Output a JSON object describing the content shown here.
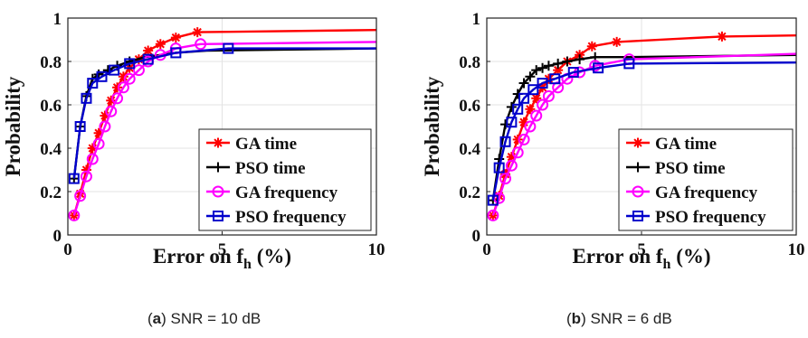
{
  "captions": [
    {
      "open": "(",
      "letter": "a",
      "close": ")",
      "text": " SNR = 10 dB"
    },
    {
      "open": "(",
      "letter": "b",
      "close": ")",
      "text": " SNR = 6 dB"
    }
  ],
  "colors": {
    "ga_time": "#ff0000",
    "pso_time": "#000000",
    "ga_frequency": "#ff00ff",
    "pso_frequency": "#0000cc"
  },
  "chart_data": [
    {
      "type": "line",
      "title": "",
      "xlabel": "Error on f",
      "xlabel_sub": "h",
      "xlabel_suffix": " (%)",
      "ylabel": "Probability",
      "xlim": [
        0,
        10
      ],
      "ylim": [
        0,
        1
      ],
      "xticks": [
        "0",
        "5",
        "10"
      ],
      "yticks": [
        "0",
        "0.2",
        "0.4",
        "0.6",
        "0.8",
        "1"
      ],
      "grid": true,
      "legend_position": "bottom-right",
      "series": [
        {
          "name": "GA time",
          "marker": "star",
          "color": "#ff0000",
          "x": [
            0.2,
            0.4,
            0.6,
            0.8,
            1.0,
            1.2,
            1.4,
            1.6,
            1.8,
            2.0,
            2.3,
            2.6,
            3.0,
            3.5,
            4.2,
            10
          ],
          "y": [
            0.09,
            0.19,
            0.3,
            0.4,
            0.47,
            0.55,
            0.62,
            0.68,
            0.73,
            0.77,
            0.81,
            0.85,
            0.88,
            0.91,
            0.935,
            0.945
          ],
          "markers_at": [
            0,
            1,
            2,
            3,
            4,
            5,
            6,
            7,
            8,
            9,
            10,
            11,
            12,
            13,
            14
          ]
        },
        {
          "name": "PSO time",
          "marker": "plus",
          "color": "#000000",
          "x": [
            0.2,
            0.4,
            0.6,
            0.8,
            1.0,
            1.3,
            1.6,
            2.0,
            2.5,
            3.0,
            3.5,
            4.5,
            10
          ],
          "y": [
            0.26,
            0.5,
            0.64,
            0.72,
            0.74,
            0.76,
            0.78,
            0.8,
            0.82,
            0.83,
            0.84,
            0.85,
            0.86
          ],
          "markers_at": [
            0,
            1,
            2,
            3,
            4,
            5,
            6,
            7
          ]
        },
        {
          "name": "GA frequency",
          "marker": "circle",
          "color": "#ff00ff",
          "x": [
            0.2,
            0.4,
            0.6,
            0.8,
            1.0,
            1.2,
            1.4,
            1.6,
            1.8,
            2.0,
            2.3,
            2.6,
            3.0,
            3.5,
            4.3,
            10
          ],
          "y": [
            0.09,
            0.18,
            0.27,
            0.35,
            0.42,
            0.5,
            0.57,
            0.63,
            0.68,
            0.72,
            0.76,
            0.8,
            0.83,
            0.86,
            0.88,
            0.89
          ],
          "markers_at": [
            0,
            1,
            2,
            3,
            4,
            5,
            6,
            7,
            8,
            9,
            10,
            11,
            12,
            13,
            14
          ]
        },
        {
          "name": "PSO frequency",
          "marker": "square",
          "color": "#0000cc",
          "x": [
            0.2,
            0.4,
            0.6,
            0.8,
            1.1,
            1.5,
            2.0,
            2.6,
            3.5,
            5.2,
            10
          ],
          "y": [
            0.26,
            0.5,
            0.63,
            0.7,
            0.73,
            0.76,
            0.79,
            0.81,
            0.84,
            0.86,
            0.86
          ],
          "markers_at": [
            0,
            1,
            2,
            3,
            4,
            5,
            6,
            7,
            8,
            9
          ]
        }
      ]
    },
    {
      "type": "line",
      "title": "",
      "xlabel": "Error on f",
      "xlabel_sub": "h",
      "xlabel_suffix": " (%)",
      "ylabel": "Probability",
      "xlim": [
        0,
        10
      ],
      "ylim": [
        0,
        1
      ],
      "xticks": [
        "0",
        "5",
        "10"
      ],
      "yticks": [
        "0",
        "0.2",
        "0.4",
        "0.6",
        "0.8",
        "1"
      ],
      "grid": true,
      "legend_position": "bottom-right",
      "series": [
        {
          "name": "GA time",
          "marker": "star",
          "color": "#ff0000",
          "x": [
            0.2,
            0.4,
            0.6,
            0.8,
            1.0,
            1.2,
            1.4,
            1.6,
            1.8,
            2.0,
            2.3,
            2.6,
            3.0,
            3.4,
            4.2,
            7.6,
            10
          ],
          "y": [
            0.09,
            0.18,
            0.28,
            0.36,
            0.44,
            0.52,
            0.58,
            0.63,
            0.68,
            0.72,
            0.76,
            0.8,
            0.83,
            0.87,
            0.89,
            0.915,
            0.92
          ],
          "markers_at": [
            0,
            1,
            2,
            3,
            4,
            5,
            6,
            7,
            8,
            9,
            10,
            11,
            12,
            13,
            14,
            15
          ]
        },
        {
          "name": "PSO time",
          "marker": "plus",
          "color": "#000000",
          "x": [
            0.2,
            0.4,
            0.6,
            0.8,
            1.0,
            1.2,
            1.4,
            1.6,
            1.8,
            2.0,
            2.3,
            2.6,
            3.0,
            3.5,
            4.5,
            10
          ],
          "y": [
            0.16,
            0.35,
            0.51,
            0.59,
            0.65,
            0.7,
            0.73,
            0.76,
            0.77,
            0.78,
            0.79,
            0.8,
            0.81,
            0.82,
            0.82,
            0.83
          ],
          "markers_at": [
            0,
            1,
            2,
            3,
            4,
            5,
            6,
            7,
            8,
            9,
            10,
            11,
            12,
            13
          ]
        },
        {
          "name": "GA frequency",
          "marker": "circle",
          "color": "#ff00ff",
          "x": [
            0.2,
            0.4,
            0.6,
            0.8,
            1.0,
            1.2,
            1.4,
            1.6,
            1.8,
            2.0,
            2.3,
            2.6,
            3.0,
            3.5,
            4.6,
            10
          ],
          "y": [
            0.09,
            0.17,
            0.26,
            0.32,
            0.38,
            0.44,
            0.5,
            0.55,
            0.6,
            0.64,
            0.68,
            0.72,
            0.75,
            0.78,
            0.81,
            0.835
          ],
          "markers_at": [
            0,
            1,
            2,
            3,
            4,
            5,
            6,
            7,
            8,
            9,
            10,
            11,
            12,
            13,
            14
          ]
        },
        {
          "name": "PSO frequency",
          "marker": "square",
          "color": "#0000cc",
          "x": [
            0.2,
            0.4,
            0.6,
            0.8,
            1.0,
            1.2,
            1.5,
            1.8,
            2.2,
            2.8,
            3.6,
            4.6,
            10
          ],
          "y": [
            0.16,
            0.31,
            0.43,
            0.52,
            0.58,
            0.63,
            0.67,
            0.7,
            0.72,
            0.75,
            0.77,
            0.79,
            0.795
          ],
          "markers_at": [
            0,
            1,
            2,
            3,
            4,
            5,
            6,
            7,
            8,
            9,
            10,
            11
          ]
        }
      ]
    }
  ]
}
